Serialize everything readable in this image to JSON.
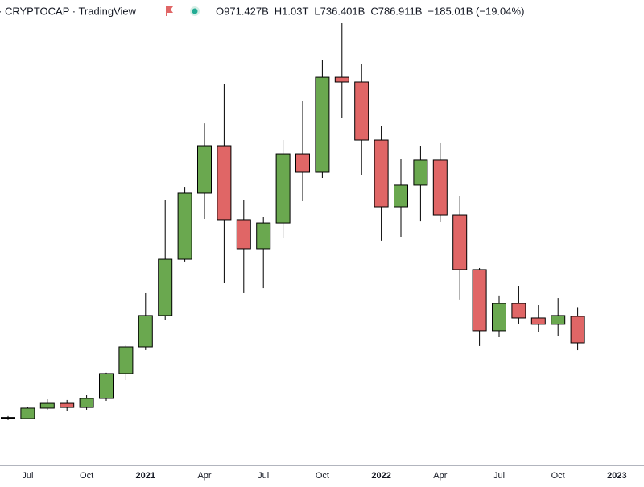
{
  "chart_data": {
    "type": "candlestick",
    "title": "· CRYPTOCAP · TradingView",
    "legend_ohlc": [
      "O971.427B",
      "H1.03T",
      "L736.401B",
      "C786.911B",
      "−185.01B (−19.04%)"
    ],
    "categories": [
      null,
      "Jul",
      null,
      null,
      "Oct",
      null,
      null,
      "2021",
      null,
      null,
      "Apr",
      null,
      null,
      "Jul",
      null,
      null,
      "Oct",
      null,
      null,
      "2022",
      null,
      null,
      "Apr",
      null,
      null,
      "Jul",
      null,
      null,
      "Oct",
      null,
      null,
      "2023"
    ],
    "open": [
      267,
      262,
      335,
      368,
      340,
      402,
      575,
      759,
      977,
      1367,
      1825,
      2154,
      1641,
      1440,
      1618,
      2098,
      1970,
      2628,
      2595,
      2193,
      1730,
      1881,
      2054,
      1674,
      1295,
      871,
      1060,
      960,
      916,
      971.427,
      null,
      null
    ],
    "high": [
      280,
      341,
      396,
      391,
      424,
      581,
      770,
      1133,
      1780,
      1869,
      2310,
      2584,
      1775,
      1663,
      2193,
      2461,
      2751,
      3008,
      2718,
      2288,
      2065,
      2154,
      2171,
      1808,
      1306,
      1111,
      1183,
      1049,
      1099,
      1030,
      null,
      null
    ],
    "low": [
      252,
      257,
      324,
      313,
      324,
      385,
      530,
      737,
      943,
      1351,
      1646,
      1200,
      1133,
      1166,
      1512,
      1769,
      1931,
      2344,
      1948,
      1496,
      1518,
      1629,
      1624,
      1083,
      765,
      826,
      921,
      860,
      837,
      736.401,
      null,
      null
    ],
    "close": [
      270,
      335,
      368,
      340,
      402,
      575,
      759,
      977,
      1367,
      1825,
      2154,
      1641,
      1440,
      1618,
      2098,
      1970,
      2628,
      2595,
      2193,
      1730,
      1881,
      2054,
      1674,
      1295,
      871,
      1060,
      960,
      916,
      977,
      786.911,
      null,
      null
    ],
    "up_color": "#6aa84f",
    "down_color": "#e06666",
    "ylim": [
      0,
      3100
    ]
  }
}
